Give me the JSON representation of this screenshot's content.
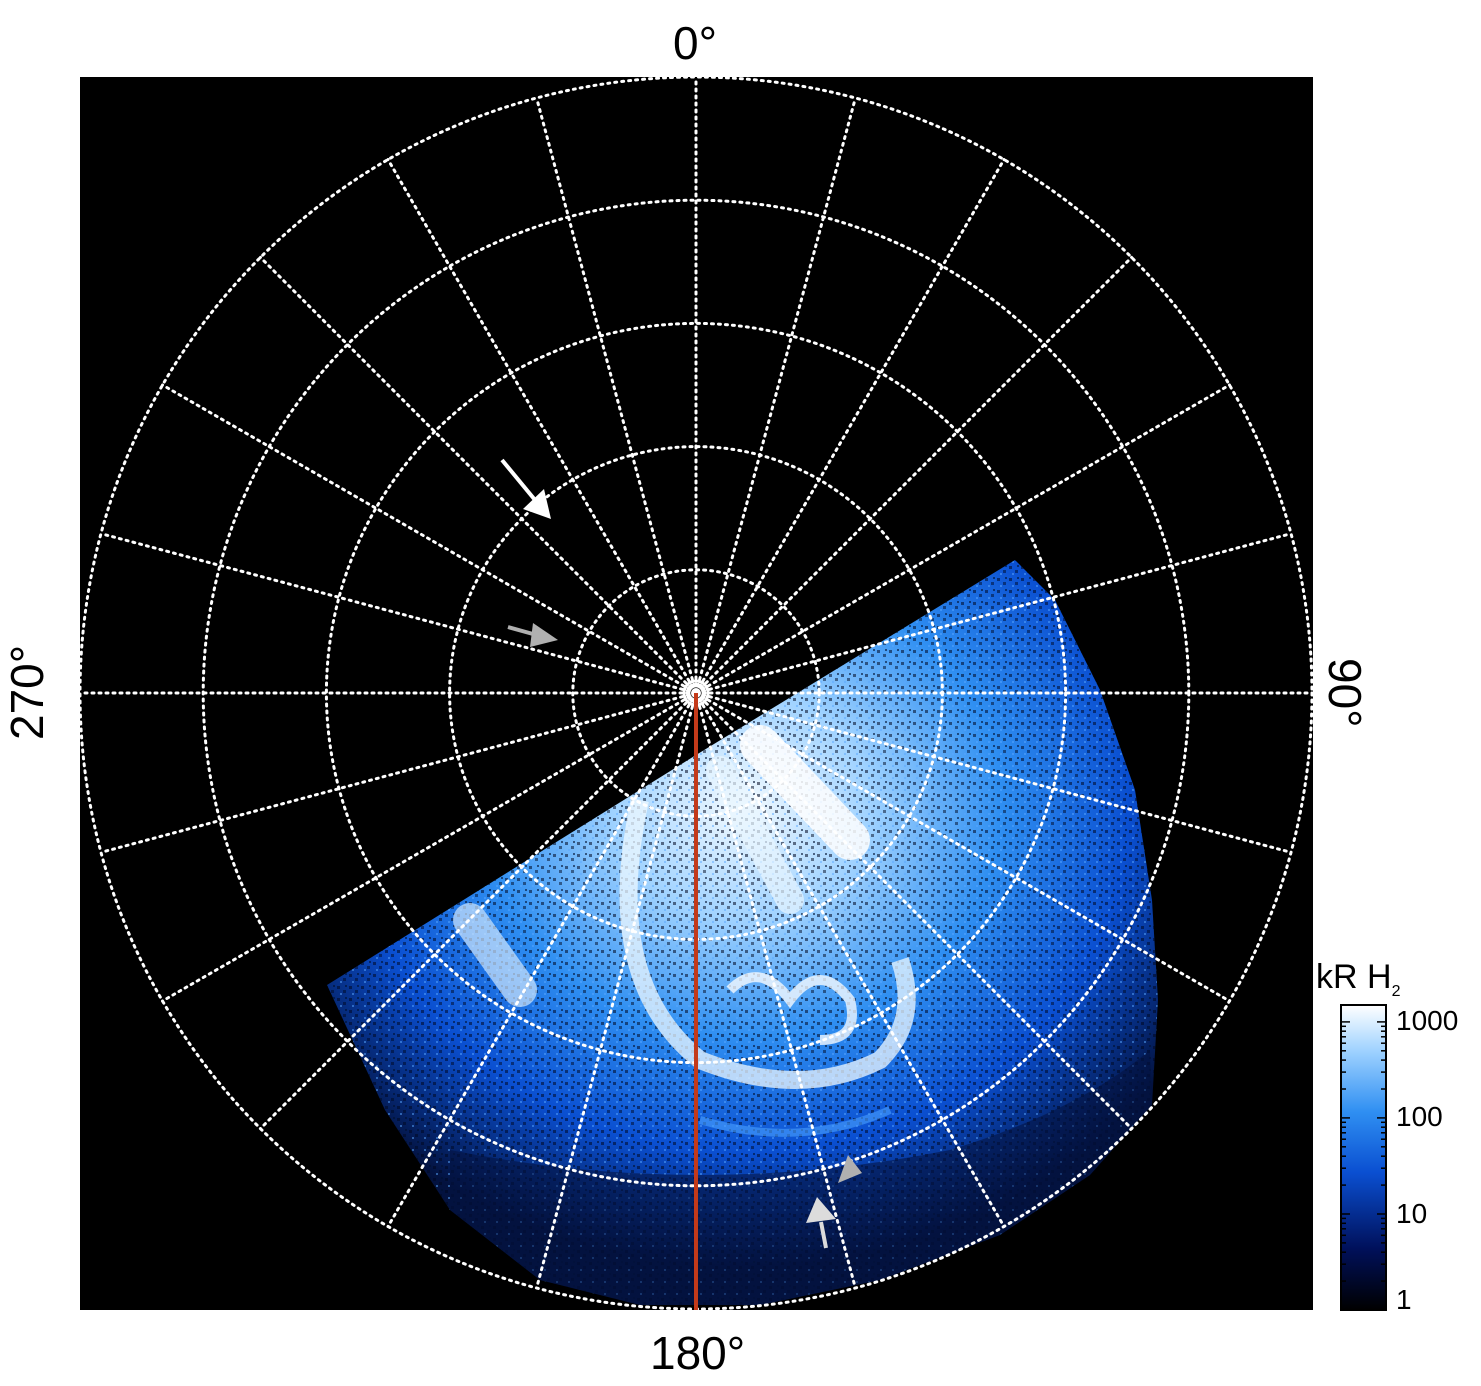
{
  "labels": {
    "top": "0°",
    "right": "90°",
    "bottom": "180°",
    "left": "270°"
  },
  "colorbar": {
    "title": "kR H",
    "title_sub": "2",
    "ticks": [
      "1000",
      "100",
      "10",
      "1"
    ],
    "tick_values": [
      1000,
      100,
      10,
      1
    ],
    "scale": "log",
    "range": [
      1,
      1500
    ],
    "colors": [
      "#000000",
      "#00105a",
      "#0a4fd1",
      "#2f8ff2",
      "#9fd2ff",
      "#ffffff"
    ]
  },
  "colors": {
    "background": "#000000",
    "grid": "#ffffff",
    "meridian_line": "#c33a1a",
    "arrow_white": "#ffffff",
    "arrow_gray": "#b0b0b0",
    "aurora_bright": "#eaf6ff",
    "aurora_mid": "#1e7df0",
    "aurora_dark": "#04144a"
  },
  "grid": {
    "style": "dotted",
    "meridian_step_deg": 15,
    "rings": 5
  }
}
